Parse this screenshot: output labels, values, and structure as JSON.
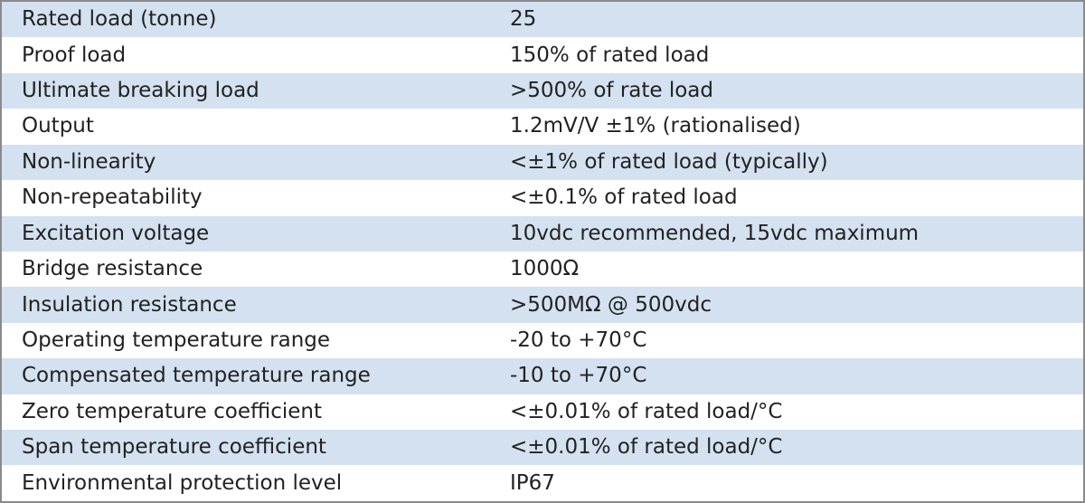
{
  "specs": [
    {
      "label": "Rated load (tonne)",
      "value": "25"
    },
    {
      "label": "Proof load",
      "value": "150% of rated load"
    },
    {
      "label": "Ultimate breaking load",
      "value": ">500% of rate load"
    },
    {
      "label": "Output",
      "value": "1.2mV/V ±1% (rationalised)"
    },
    {
      "label": "Non-linearity",
      "value": "<±1% of rated load (typically)"
    },
    {
      "label": "Non-repeatability",
      "value": "<±0.1% of rated load"
    },
    {
      "label": "Excitation voltage",
      "value": "10vdc recommended, 15vdc maximum"
    },
    {
      "label": "Bridge resistance",
      "value": "1000Ω"
    },
    {
      "label": "Insulation resistance",
      "value": ">500MΩ @ 500vdc"
    },
    {
      "label": "Operating temperature range",
      "value": "-20 to +70°C"
    },
    {
      "label": "Compensated temperature range",
      "value": "-10 to +70°C"
    },
    {
      "label": "Zero temperature coefficient",
      "value": "<±0.01% of rated load/°C"
    },
    {
      "label": "Span temperature coefficient",
      "value": "<±0.01% of rated load/°C"
    },
    {
      "label": "Environmental protection level",
      "value": "IP67"
    }
  ],
  "colors": {
    "stripe": "#d3e1f0",
    "background": "#ffffff",
    "border": "#8a8a8a",
    "text": "#222222"
  }
}
